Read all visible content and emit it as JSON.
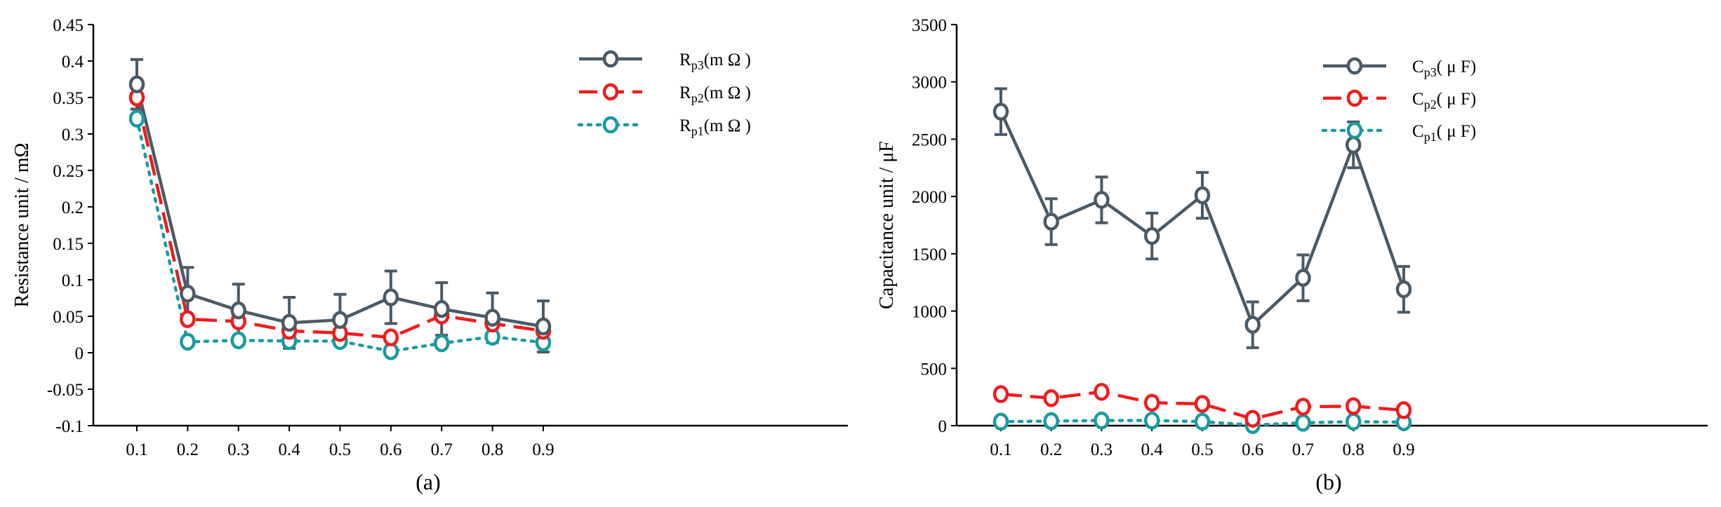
{
  "chart_data": [
    {
      "type": "line",
      "caption": "(a)",
      "ylabel": "Resistance unit / mΩ",
      "xlabel": "",
      "categories": [
        "0.1",
        "0.2",
        "0.3",
        "0.4",
        "0.5",
        "0.6",
        "0.7",
        "0.8",
        "0.9"
      ],
      "ylim": [
        -0.1,
        0.45
      ],
      "yticks": [
        "-0.1",
        "-0.05",
        "0",
        "0.05",
        "0.1",
        "0.15",
        "0.2",
        "0.25",
        "0.3",
        "0.35",
        "0.4",
        "0.45"
      ],
      "grid": false,
      "legend_position": "top-right",
      "series": [
        {
          "name": "Rp3(m Ω )",
          "label_main": "R",
          "label_sub": "p3",
          "label_rest": "(m Ω )",
          "color": "#4a5a66",
          "dash": "solid",
          "values": [
            0.368,
            0.081,
            0.058,
            0.041,
            0.045,
            0.076,
            0.06,
            0.048,
            0.036
          ],
          "errors": [
            0.034,
            0.036,
            0.036,
            0.035,
            0.035,
            0.036,
            0.036,
            0.034,
            0.035
          ]
        },
        {
          "name": "Rp2(m Ω )",
          "label_main": "R",
          "label_sub": "p2",
          "label_rest": "(m Ω )",
          "color": "#ee1c1c",
          "dash": "dashed",
          "values": [
            0.35,
            0.046,
            0.043,
            0.03,
            0.027,
            0.021,
            0.051,
            0.04,
            0.03
          ]
        },
        {
          "name": "Rp1(m Ω )",
          "label_main": "R",
          "label_sub": "p1",
          "label_rest": "(m Ω )",
          "color": "#1a9aa0",
          "dash": "dotted",
          "values": [
            0.321,
            0.015,
            0.017,
            0.016,
            0.016,
            0.002,
            0.013,
            0.022,
            0.014
          ]
        }
      ]
    },
    {
      "type": "line",
      "caption": "(b)",
      "ylabel": "Capacitance unit / μF",
      "xlabel": "",
      "categories": [
        "0.1",
        "0.2",
        "0.3",
        "0.4",
        "0.5",
        "0.6",
        "0.7",
        "0.8",
        "0.9"
      ],
      "ylim": [
        0,
        3500
      ],
      "yticks": [
        "0",
        "500",
        "1000",
        "1500",
        "2000",
        "2500",
        "3000",
        "3500"
      ],
      "grid": false,
      "legend_position": "top-center",
      "series": [
        {
          "name": "Cp3( μ F)",
          "label_main": "C",
          "label_sub": "p3",
          "label_rest": "( μ F)",
          "color": "#4a5a66",
          "dash": "solid",
          "values": [
            2740,
            1780,
            1970,
            1655,
            2010,
            880,
            1290,
            2450,
            1190
          ],
          "errors": [
            200,
            200,
            200,
            200,
            200,
            200,
            200,
            200,
            200
          ]
        },
        {
          "name": "Cp2( μ F)",
          "label_main": "C",
          "label_sub": "p2",
          "label_rest": "( μ F)",
          "color": "#ee1c1c",
          "dash": "dashed",
          "values": [
            275,
            240,
            295,
            200,
            190,
            60,
            165,
            170,
            135
          ]
        },
        {
          "name": "Cp1( μ F)",
          "label_main": "C",
          "label_sub": "p1",
          "label_rest": "( μ F)",
          "color": "#1a9aa0",
          "dash": "dotted",
          "values": [
            35,
            40,
            45,
            45,
            35,
            5,
            25,
            35,
            30
          ]
        }
      ]
    }
  ]
}
